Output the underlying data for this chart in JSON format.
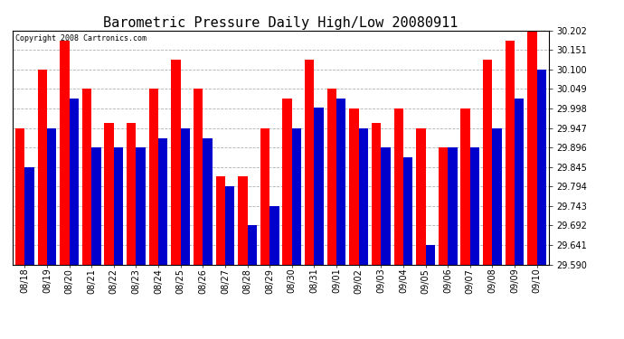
{
  "title": "Barometric Pressure Daily High/Low 20080911",
  "copyright": "Copyright 2008 Cartronics.com",
  "dates": [
    "08/18",
    "08/19",
    "08/20",
    "08/21",
    "08/22",
    "08/23",
    "08/24",
    "08/25",
    "08/26",
    "08/27",
    "08/28",
    "08/29",
    "08/30",
    "08/31",
    "09/01",
    "09/02",
    "09/03",
    "09/04",
    "09/05",
    "09/06",
    "09/07",
    "09/08",
    "09/09",
    "09/10"
  ],
  "highs": [
    29.947,
    30.1,
    30.175,
    30.049,
    29.96,
    29.96,
    30.049,
    30.126,
    30.049,
    29.821,
    29.821,
    29.947,
    30.024,
    30.126,
    30.049,
    29.998,
    29.96,
    29.998,
    29.947,
    29.896,
    29.998,
    30.126,
    30.175,
    30.202
  ],
  "lows": [
    29.845,
    29.947,
    30.024,
    29.896,
    29.896,
    29.896,
    29.92,
    29.947,
    29.92,
    29.794,
    29.692,
    29.743,
    29.947,
    30.0,
    30.024,
    29.947,
    29.896,
    29.871,
    29.641,
    29.896,
    29.896,
    29.947,
    30.024,
    30.1
  ],
  "ylim_min": 29.59,
  "ylim_max": 30.202,
  "yticks": [
    29.59,
    29.641,
    29.692,
    29.743,
    29.794,
    29.845,
    29.896,
    29.947,
    29.998,
    30.049,
    30.1,
    30.151,
    30.202
  ],
  "high_color": "#ff0000",
  "low_color": "#0000cc",
  "bg_color": "#ffffff",
  "grid_color": "#b0b0b0",
  "bar_width": 0.42,
  "title_fontsize": 11,
  "tick_fontsize": 7,
  "copyright_fontsize": 6
}
